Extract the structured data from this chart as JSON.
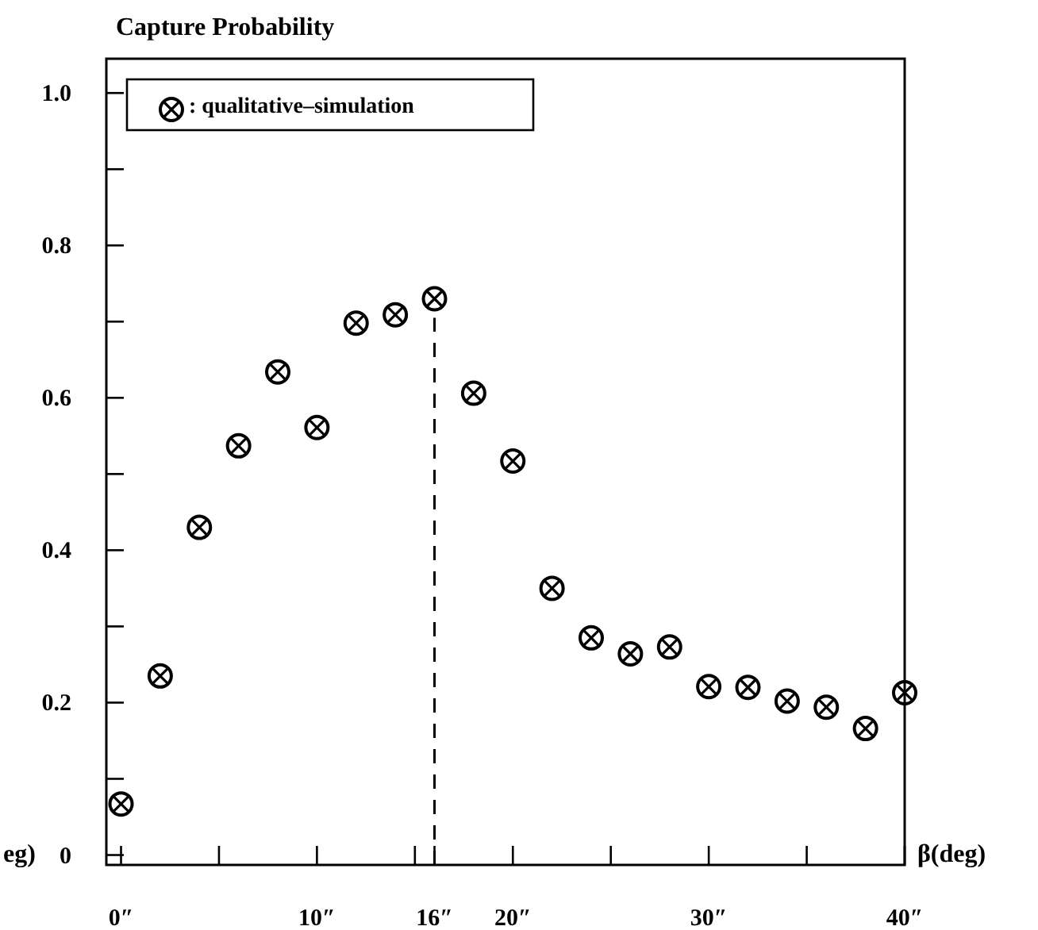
{
  "chart_data": {
    "type": "scatter",
    "title": "Capture Probability",
    "xlabel": "β(deg)",
    "x": [
      0,
      2,
      4,
      6,
      8,
      10,
      12,
      14,
      16,
      18,
      20,
      22,
      24,
      26,
      28,
      30,
      32,
      34,
      36,
      38,
      40
    ],
    "series": [
      {
        "name": ": qualitative–simulation",
        "color": "#000000",
        "values": [
          0.067,
          0.235,
          0.43,
          0.537,
          0.634,
          0.561,
          0.698,
          0.709,
          0.73,
          0.606,
          0.517,
          0.35,
          0.285,
          0.264,
          0.273,
          0.221,
          0.22,
          0.202,
          0.194,
          0.166,
          0.213
        ]
      }
    ],
    "xlim": [
      -0.75,
      40
    ],
    "xticks": [
      {
        "value": 0,
        "label": "0″"
      },
      {
        "value": 5,
        "label": null
      },
      {
        "value": 10,
        "label": "10″"
      },
      {
        "value": 15,
        "label": null
      },
      {
        "value": 16,
        "label": "16″"
      },
      {
        "value": 20,
        "label": "20″"
      },
      {
        "value": 25,
        "label": null
      },
      {
        "value": 30,
        "label": "30″"
      },
      {
        "value": 35,
        "label": null
      },
      {
        "value": 40,
        "label": "40″"
      }
    ],
    "ylim": [
      -0.013,
      1.045
    ],
    "yticks": [
      0,
      {
        "value": 0.1,
        "label": null
      },
      {
        "value": 0.2,
        "label": "0.2"
      },
      {
        "value": 0.3,
        "label": null
      },
      {
        "value": 0.4,
        "label": "0.4"
      },
      {
        "value": 0.5,
        "label": null
      },
      {
        "value": 0.6,
        "label": "0.6"
      },
      {
        "value": 0.7,
        "label": null
      },
      {
        "value": 0.8,
        "label": "0.8"
      },
      {
        "value": 0.9,
        "label": null
      },
      {
        "value": 1.0,
        "label": "1.0"
      }
    ],
    "ref_lines": [
      {
        "axis": "x",
        "value": 16,
        "line_style": "dashed"
      }
    ],
    "annotations": [
      "eg)"
    ],
    "marker": "circle",
    "legend": "top left",
    "grid": false
  }
}
